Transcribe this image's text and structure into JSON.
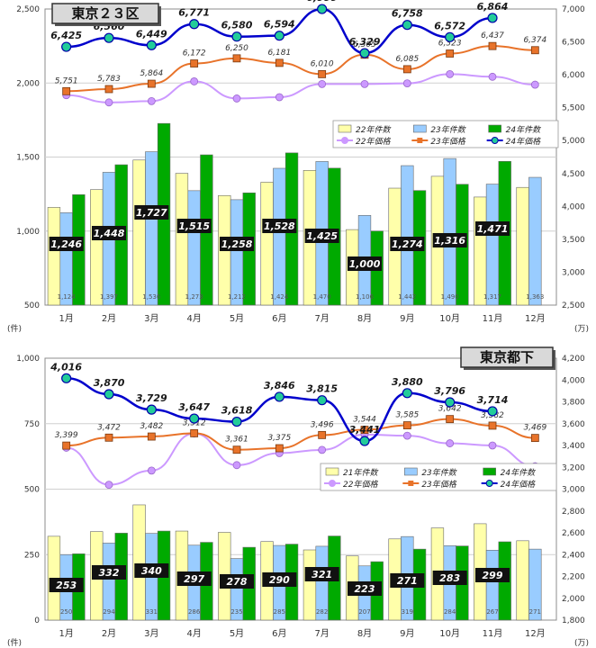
{
  "chart_data": [
    {
      "type": "bar",
      "title": "東京２３区",
      "categories": [
        "1月",
        "2月",
        "3月",
        "4月",
        "5月",
        "6月",
        "7月",
        "8月",
        "9月",
        "10月",
        "11月",
        "12月"
      ],
      "left_axis": {
        "unit": "(件)",
        "range": [
          500,
          2500
        ],
        "ticks": [
          "500",
          "1,000",
          "1,500",
          "2,000",
          "2,500"
        ]
      },
      "right_axis": {
        "unit": "(万)",
        "range": [
          2500,
          7000
        ],
        "ticks": [
          "2,500",
          "3,000",
          "3,500",
          "4,000",
          "4,500",
          "5,000",
          "5,500",
          "6,000",
          "6,500",
          "7,000"
        ]
      },
      "series": [
        {
          "name": "22年件数",
          "kind": "bar",
          "axis": "left",
          "color": "#ffffaa",
          "values": [
            1160,
            1280,
            1480,
            1390,
            1240,
            1330,
            1410,
            1010,
            1290,
            1370,
            1230,
            1295
          ]
        },
        {
          "name": "23年件数",
          "kind": "bar",
          "axis": "left",
          "color": "#99ccff",
          "values": [
            1124,
            1397,
            1536,
            1273,
            1212,
            1424,
            1470,
            1106,
            1442,
            1490,
            1317,
            1363
          ],
          "labels": [
            "1,124",
            "1,397",
            "1,536",
            "1,273",
            "1,212",
            "1,424",
            "1,470",
            "1,106",
            "1,442",
            "1,490",
            "1,317",
            "1,363"
          ]
        },
        {
          "name": "24年件数",
          "kind": "bar",
          "axis": "left",
          "color": "#00aa00",
          "values": [
            1246,
            1448,
            1727,
            1515,
            1258,
            1528,
            1425,
            1000,
            1274,
            1316,
            1471,
            null
          ],
          "labels": [
            "1,246",
            "1,448",
            "1,727",
            "1,515",
            "1,258",
            "1,528",
            "1,425",
            "1,000",
            "1,274",
            "1,316",
            "1,471",
            ""
          ]
        },
        {
          "name": "22年価格",
          "kind": "line",
          "axis": "right",
          "color": "#cc99ff",
          "values": [
            5690,
            5580,
            5600,
            5900,
            5640,
            5660,
            5860,
            5860,
            5870,
            6010,
            5970,
            5850
          ]
        },
        {
          "name": "23年価格",
          "kind": "line",
          "axis": "right",
          "color": "#e8732a",
          "values": [
            5751,
            5783,
            5864,
            6172,
            6250,
            6181,
            6010,
            6305,
            6085,
            6323,
            6437,
            6374
          ],
          "labels": [
            "5,751",
            "5,783",
            "5,864",
            "6,172",
            "6,250",
            "6,181",
            "6,010",
            "6,305",
            "6,085",
            "6,323",
            "6,437",
            "6,374"
          ]
        },
        {
          "name": "24年価格",
          "kind": "line",
          "axis": "right",
          "color": "#0000cc",
          "values": [
            6425,
            6560,
            6449,
            6771,
            6580,
            6594,
            6999,
            6329,
            6758,
            6572,
            6864,
            null
          ],
          "labels": [
            "6,425",
            "6,560",
            "6,449",
            "6,771",
            "6,580",
            "6,594",
            "6,999",
            "6,329",
            "6,758",
            "6,572",
            "6,864",
            ""
          ]
        }
      ],
      "legend": "right-middle",
      "grid": true
    },
    {
      "type": "bar",
      "title": "東京都下",
      "categories": [
        "1月",
        "2月",
        "3月",
        "4月",
        "5月",
        "6月",
        "7月",
        "8月",
        "9月",
        "10月",
        "11月",
        "12月"
      ],
      "left_axis": {
        "unit": "(件)",
        "range": [
          0,
          1000
        ],
        "ticks": [
          "0",
          "250",
          "500",
          "750",
          "1,000"
        ]
      },
      "right_axis": {
        "unit": "(万)",
        "range": [
          1800,
          4200
        ],
        "ticks": [
          "1,800",
          "2,000",
          "2,200",
          "2,400",
          "2,600",
          "2,800",
          "3,000",
          "3,200",
          "3,400",
          "3,600",
          "3,800",
          "4,000",
          "4,200"
        ]
      },
      "series": [
        {
          "name": "21年件数",
          "kind": "bar",
          "axis": "left",
          "color": "#ffffaa",
          "values": [
            320,
            338,
            440,
            340,
            335,
            300,
            268,
            245,
            310,
            352,
            368,
            303
          ]
        },
        {
          "name": "23年件数",
          "kind": "bar",
          "axis": "left",
          "color": "#99ccff",
          "values": [
            250,
            294,
            331,
            286,
            235,
            285,
            282,
            207,
            319,
            284,
            267,
            271
          ],
          "labels": [
            "250",
            "294",
            "331",
            "286",
            "235",
            "285",
            "282",
            "207",
            "319",
            "284",
            "267",
            "271"
          ]
        },
        {
          "name": "24年件数",
          "kind": "bar",
          "axis": "left",
          "color": "#00aa00",
          "values": [
            253,
            332,
            340,
            297,
            278,
            290,
            321,
            223,
            271,
            283,
            299,
            null
          ],
          "labels": [
            "253",
            "332",
            "340",
            "297",
            "278",
            "290",
            "321",
            "223",
            "271",
            "283",
            "299",
            ""
          ]
        },
        {
          "name": "22年価格",
          "kind": "line",
          "axis": "right",
          "color": "#cc99ff",
          "values": [
            3380,
            3040,
            3170,
            3510,
            3220,
            3330,
            3360,
            3500,
            3490,
            3420,
            3400,
            3210
          ]
        },
        {
          "name": "23年価格",
          "kind": "line",
          "axis": "right",
          "color": "#e8732a",
          "values": [
            3399,
            3472,
            3482,
            3512,
            3361,
            3375,
            3496,
            3544,
            3585,
            3642,
            3582,
            3469
          ],
          "labels": [
            "3,399",
            "3,472",
            "3,482",
            "3,512",
            "3,361",
            "3,375",
            "3,496",
            "3,544",
            "3,585",
            "3,642",
            "3,582",
            "3,469"
          ]
        },
        {
          "name": "24年価格",
          "kind": "line",
          "axis": "right",
          "color": "#0000cc",
          "values": [
            4016,
            3870,
            3729,
            3647,
            3618,
            3846,
            3815,
            3441,
            3880,
            3796,
            3714,
            null
          ],
          "labels": [
            "4,016",
            "3,870",
            "3,729",
            "3,647",
            "3,618",
            "3,846",
            "3,815",
            "3,441",
            "3,880",
            "3,796",
            "3,714",
            ""
          ]
        }
      ],
      "legend": "right-middle",
      "grid": true
    }
  ]
}
